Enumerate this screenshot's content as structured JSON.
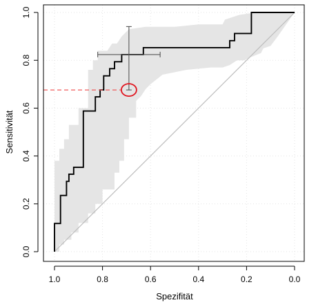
{
  "chart_data": {
    "type": "line",
    "title": "",
    "xlabel": "Spezifität",
    "ylabel": "Sensitivität",
    "xlim": [
      1.0,
      0.0
    ],
    "ylim": [
      0.0,
      1.0
    ],
    "x_reversed": true,
    "x_ticks": [
      "1.0",
      "0.8",
      "0.6",
      "0.4",
      "0.2",
      "0.0"
    ],
    "x_tick_values": [
      1.0,
      0.8,
      0.6,
      0.4,
      0.2,
      0.0
    ],
    "y_ticks": [
      "0.0",
      "0.2",
      "0.4",
      "0.6",
      "0.8",
      "1.0"
    ],
    "y_tick_values": [
      0.0,
      0.2,
      0.4,
      0.6,
      0.8,
      1.0
    ],
    "grid": true,
    "reference_line": {
      "from": [
        1.0,
        0.0
      ],
      "to": [
        0.0,
        1.0
      ],
      "color": "#bdbdbd"
    },
    "roc_curve": {
      "color": "#000000",
      "specificity": [
        1.0,
        1.0,
        0.975,
        0.975,
        0.95,
        0.95,
        0.94,
        0.94,
        0.92,
        0.92,
        0.88,
        0.88,
        0.83,
        0.83,
        0.81,
        0.81,
        0.795,
        0.795,
        0.77,
        0.77,
        0.75,
        0.75,
        0.72,
        0.72,
        0.7,
        0.7,
        0.69,
        0.69,
        0.63,
        0.63,
        0.27,
        0.27,
        0.25,
        0.25,
        0.18,
        0.18,
        0.0
      ],
      "sensitivity": [
        0.0,
        0.118,
        0.118,
        0.235,
        0.235,
        0.294,
        0.294,
        0.324,
        0.324,
        0.353,
        0.353,
        0.588,
        0.588,
        0.647,
        0.647,
        0.676,
        0.676,
        0.735,
        0.735,
        0.765,
        0.765,
        0.794,
        0.794,
        0.824,
        0.824,
        0.824,
        0.824,
        0.824,
        0.824,
        0.853,
        0.853,
        0.882,
        0.882,
        0.912,
        0.912,
        1.0,
        1.0
      ]
    },
    "confidence_band": {
      "color": "#e5e5e5",
      "upper": {
        "specificity": [
          1.0,
          1.0,
          0.98,
          0.98,
          0.96,
          0.96,
          0.94,
          0.94,
          0.9,
          0.9,
          0.86,
          0.86,
          0.84,
          0.84,
          0.82,
          0.82,
          0.78,
          0.76,
          0.74,
          0.72,
          0.69,
          0.62,
          0.55,
          0.5,
          0.4,
          0.3,
          0.29,
          0.29,
          0.23,
          0.23,
          0.16,
          0.16,
          0.07,
          0.0
        ],
        "sensitivity": [
          0.0,
          0.38,
          0.38,
          0.43,
          0.43,
          0.47,
          0.47,
          0.53,
          0.53,
          0.6,
          0.6,
          0.76,
          0.76,
          0.8,
          0.8,
          0.84,
          0.84,
          0.87,
          0.87,
          0.9,
          0.93,
          0.94,
          0.94,
          0.94,
          0.95,
          0.95,
          0.97,
          0.97,
          0.99,
          0.99,
          1.0,
          1.0,
          1.0,
          1.0
        ]
      },
      "lower": {
        "specificity": [
          0.0,
          0.07,
          0.1,
          0.13,
          0.14,
          0.19,
          0.21,
          0.24,
          0.27,
          0.3,
          0.35,
          0.45,
          0.55,
          0.6,
          0.62,
          0.64,
          0.66,
          0.66,
          0.69,
          0.69,
          0.71,
          0.71,
          0.73,
          0.73,
          0.75,
          0.75,
          0.8,
          0.8,
          0.83,
          0.83,
          0.86,
          0.86,
          0.9,
          0.9,
          0.93,
          0.93,
          0.96,
          0.96,
          0.98,
          0.98,
          1.0
        ],
        "sensitivity": [
          1.0,
          0.9,
          0.86,
          0.85,
          0.83,
          0.81,
          0.8,
          0.8,
          0.78,
          0.77,
          0.77,
          0.76,
          0.74,
          0.7,
          0.68,
          0.65,
          0.63,
          0.56,
          0.56,
          0.47,
          0.47,
          0.38,
          0.38,
          0.33,
          0.33,
          0.26,
          0.26,
          0.2,
          0.2,
          0.16,
          0.16,
          0.12,
          0.12,
          0.08,
          0.08,
          0.05,
          0.05,
          0.03,
          0.03,
          0.0,
          0.0
        ]
      }
    },
    "error_bars": {
      "color": "#555555",
      "center": [
        0.69,
        0.824
      ],
      "sensitivity_range": [
        0.676,
        0.941
      ],
      "specificity_range": [
        0.56,
        0.82
      ]
    },
    "highlight_point": {
      "specificity": 0.69,
      "sensitivity": 0.676,
      "circle_color": "#e0141e",
      "guide_color": "#f05a5a"
    }
  }
}
